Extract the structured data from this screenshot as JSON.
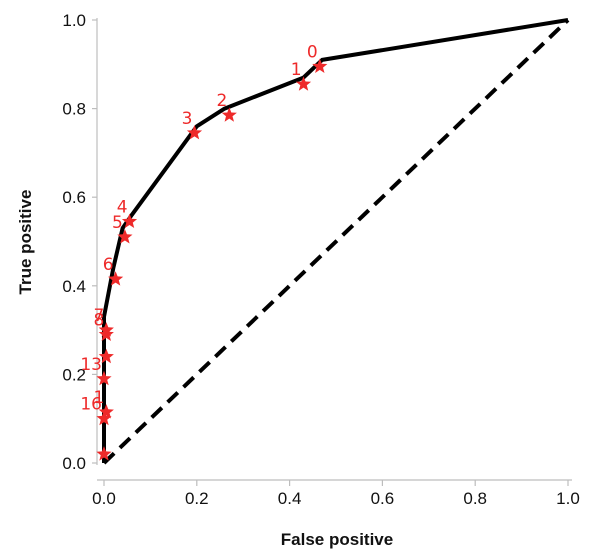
{
  "chart_data": {
    "type": "line",
    "title": "",
    "xlabel": "False positive",
    "ylabel": "True positive",
    "xlim": [
      0.0,
      1.0
    ],
    "ylim": [
      0.0,
      1.0
    ],
    "x_ticks": [
      "0.0",
      "0.2",
      "0.4",
      "0.6",
      "0.8",
      "1.0"
    ],
    "y_ticks": [
      "0.0",
      "0.2",
      "0.4",
      "0.6",
      "0.8",
      "1.0"
    ],
    "grid": false,
    "legend": "none",
    "series": [
      {
        "style": "solid",
        "color": "#000000",
        "x": [
          0.0,
          0.0,
          0.0,
          0.0,
          0.0,
          0.0,
          0.02,
          0.04,
          0.06,
          0.2,
          0.26,
          0.43,
          0.47,
          1.0
        ],
        "y": [
          0.0,
          0.1,
          0.22,
          0.3,
          0.3,
          0.33,
          0.44,
          0.53,
          0.56,
          0.76,
          0.8,
          0.87,
          0.91,
          1.0
        ]
      },
      {
        "style": "dashed",
        "color": "#000000",
        "x": [
          0.0,
          1.0
        ],
        "y": [
          0.0,
          1.0
        ]
      }
    ],
    "markers": {
      "color": "#ee2a2a",
      "shape": "star",
      "points": [
        {
          "label": "0",
          "x": 0.465,
          "y": 0.895
        },
        {
          "label": "1",
          "x": 0.43,
          "y": 0.855
        },
        {
          "label": "2",
          "x": 0.27,
          "y": 0.785
        },
        {
          "label": "3",
          "x": 0.195,
          "y": 0.745
        },
        {
          "label": "4",
          "x": 0.055,
          "y": 0.545
        },
        {
          "label": "5",
          "x": 0.045,
          "y": 0.51
        },
        {
          "label": "6",
          "x": 0.025,
          "y": 0.415
        },
        {
          "label": "7",
          "x": 0.005,
          "y": 0.3
        },
        {
          "label": "8",
          "x": 0.005,
          "y": 0.29
        },
        {
          "label": "",
          "x": 0.005,
          "y": 0.24
        },
        {
          "label": "13",
          "x": 0.0,
          "y": 0.19
        },
        {
          "label": "1",
          "x": 0.005,
          "y": 0.115
        },
        {
          "label": "16",
          "x": 0.0,
          "y": 0.1
        },
        {
          "label": "",
          "x": 0.0,
          "y": 0.02
        }
      ]
    }
  }
}
